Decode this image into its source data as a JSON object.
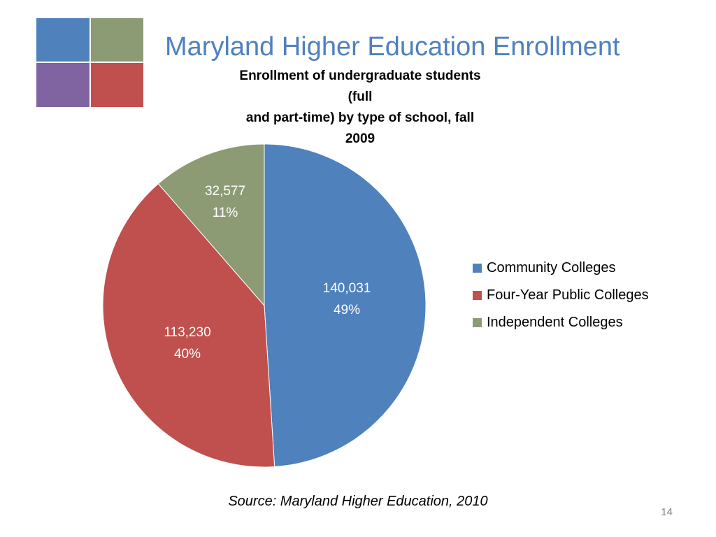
{
  "slide": {
    "title": "Maryland Higher Education Enrollment",
    "subtitle_line1": "Enrollment of undergraduate students (full",
    "subtitle_line2": "and part-time) by type of school, fall 2009",
    "source": "Source: Maryland Higher Education, 2010",
    "page_number": "14",
    "logo_colors": [
      "#4F81BD",
      "#8C9B74",
      "#8064A2",
      "#C0504D"
    ]
  },
  "chart_data": {
    "type": "pie",
    "title": "Enrollment of undergraduate students (full and part-time) by type of school, fall 2009",
    "categories": [
      "Community Colleges",
      "Four-Year Public Colleges",
      "Independent Colleges"
    ],
    "values": [
      140031,
      113230,
      32577
    ],
    "value_labels": [
      "140,031",
      "113,230",
      "32,577"
    ],
    "percent_labels": [
      "49%",
      "40%",
      "11%"
    ],
    "colors": [
      "#4F81BD",
      "#C0504D",
      "#8C9B74"
    ],
    "start_angle": "12 o'clock",
    "direction": "clockwise",
    "legend_position": "right"
  }
}
